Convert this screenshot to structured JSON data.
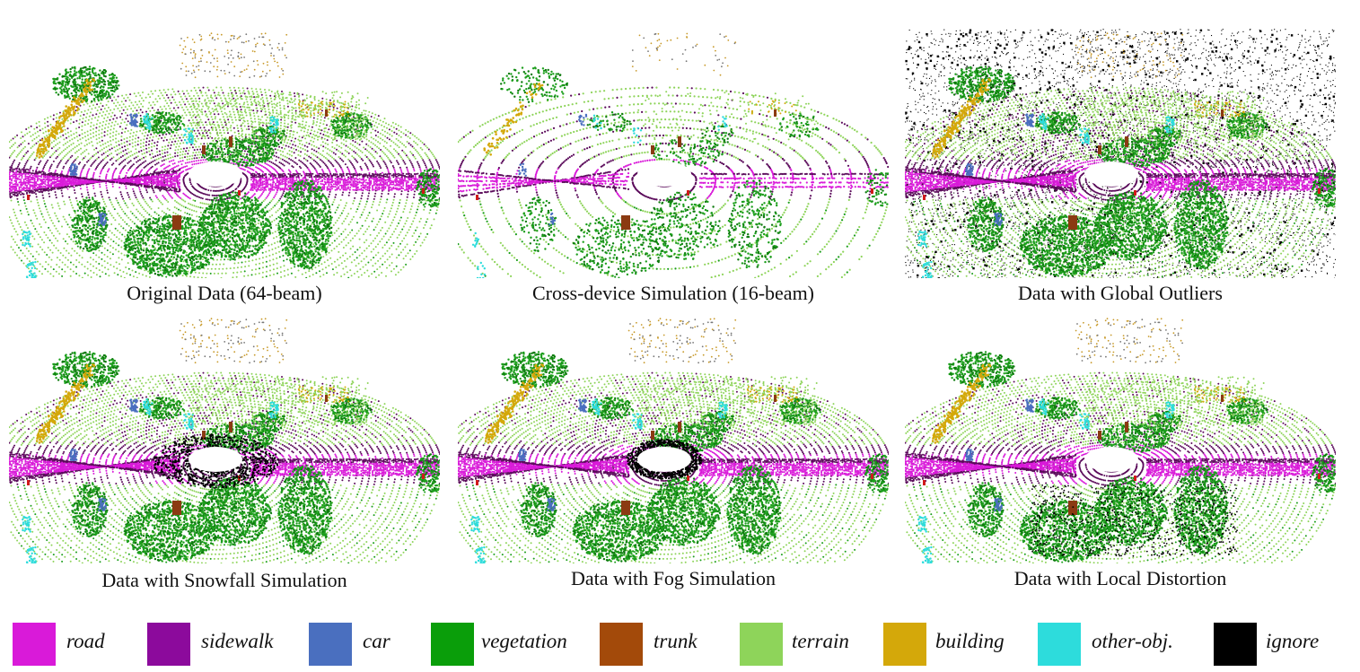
{
  "panels": [
    {
      "caption": "Original Data (64-beam)",
      "variant": "original"
    },
    {
      "caption": "Cross-device Simulation (16-beam)",
      "variant": "sparse"
    },
    {
      "caption": "Data with Global Outliers",
      "variant": "outliers"
    },
    {
      "caption": "Data with Snowfall Simulation",
      "variant": "snow"
    },
    {
      "caption": "Data with Fog Simulation",
      "variant": "fog"
    },
    {
      "caption": "Data with Local Distortion",
      "variant": "distort"
    }
  ],
  "legend": [
    {
      "label": "road",
      "color": "#d91ad9"
    },
    {
      "label": "sidewalk",
      "color": "#8c0a9c"
    },
    {
      "label": "car",
      "color": "#4a6fbf"
    },
    {
      "label": "vegetation",
      "color": "#0a9e0a"
    },
    {
      "label": "trunk",
      "color": "#a34a0a"
    },
    {
      "label": "terrain",
      "color": "#8ed45a"
    },
    {
      "label": "building",
      "color": "#d4a80a"
    },
    {
      "label": "other-obj.",
      "color": "#2ddcdc"
    },
    {
      "label": "ignore",
      "color": "#000000"
    }
  ],
  "colors": {
    "road": "#d91ad9",
    "sidewalk": "#5a0a5a",
    "car": "#4a6fbf",
    "vegetation": "#1c9e1c",
    "trunk": "#8b3a12",
    "terrain": "#8ed45a",
    "building": "#d4a80a",
    "other": "#2ddcdc",
    "ignore": "#000000"
  }
}
